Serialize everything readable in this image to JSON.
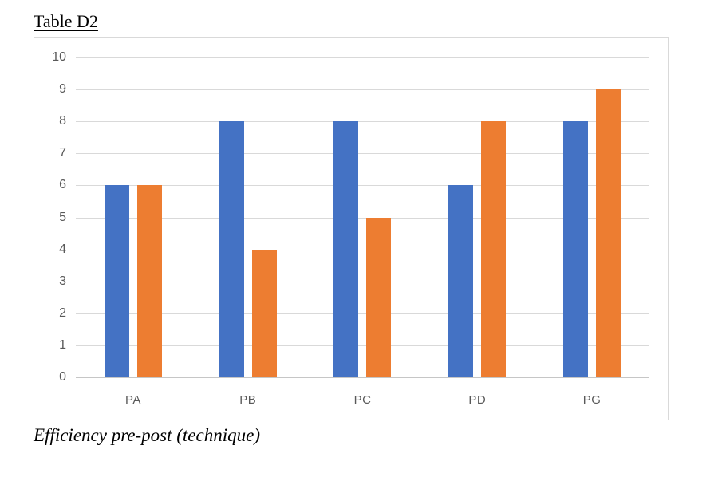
{
  "page": {
    "title": "Table D2",
    "caption": "Efficiency pre-post (technique)"
  },
  "chart_data": {
    "type": "bar",
    "title": "Table D2",
    "caption": "Efficiency pre-post (technique)",
    "categories": [
      "PA",
      "PB",
      "PC",
      "PD",
      "PG"
    ],
    "series": [
      {
        "name": "series-1",
        "color": "#4472C4",
        "values": [
          6,
          8,
          8,
          6,
          8
        ]
      },
      {
        "name": "series-2",
        "color": "#ED7D31",
        "values": [
          6,
          4,
          5,
          8,
          9
        ]
      }
    ],
    "xlabel": "",
    "ylabel": "",
    "ylim": [
      0,
      10
    ],
    "yticks": [
      0,
      1,
      2,
      3,
      4,
      5,
      6,
      7,
      8,
      9,
      10
    ],
    "grid": true,
    "legend": "none",
    "colors": {
      "gridline": "#D9D9D9",
      "baseline": "#C6C6C6",
      "axis_text": "#595959",
      "chart_border": "#D9D9D9",
      "background": "#FFFFFF"
    }
  }
}
